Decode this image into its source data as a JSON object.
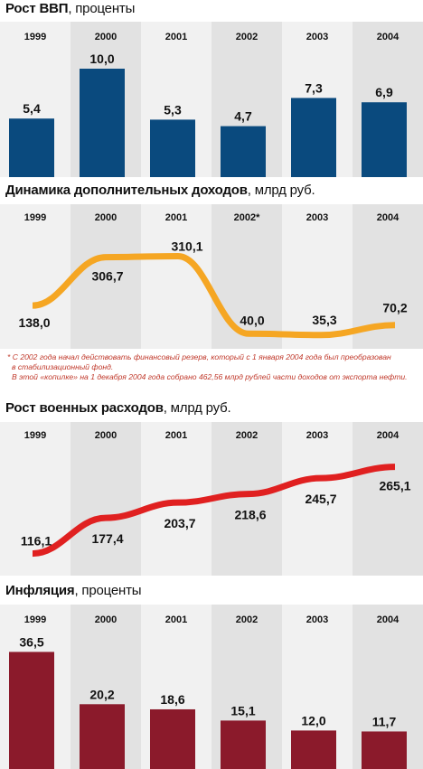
{
  "colors": {
    "stripe_light": "#f1f1f1",
    "stripe_dark": "#e2e2e2",
    "gdp_bar": "#0a4a7e",
    "revenue_line": "#f5a623",
    "military_line": "#e02020",
    "inflation_bar": "#8b1a2b"
  },
  "chart_data": [
    {
      "type": "bar",
      "title": "Рост ВВП",
      "unit": "проценты",
      "categories": [
        "1999",
        "2000",
        "2001",
        "2002",
        "2003",
        "2004"
      ],
      "values": [
        5.4,
        10.0,
        5.3,
        4.7,
        7.3,
        6.9
      ],
      "value_labels": [
        "5,4",
        "10,0",
        "5,3",
        "4,7",
        "7,3",
        "6,9"
      ],
      "ylim": [
        0,
        11
      ],
      "grid": false
    },
    {
      "type": "line",
      "title": "Динамика дополнительных доходов",
      "unit": "млрд руб.",
      "categories": [
        "1999",
        "2000",
        "2001",
        "2002*",
        "2003",
        "2004"
      ],
      "values": [
        138.0,
        306.7,
        310.1,
        40.0,
        35.3,
        70.2
      ],
      "value_labels": [
        "138,0",
        "306,7",
        "310,1",
        "40,0",
        "35,3",
        "70,2"
      ],
      "ylim": [
        0,
        340
      ],
      "grid": false
    },
    {
      "type": "line",
      "title": "Рост военных расходов",
      "unit": "млрд руб.",
      "categories": [
        "1999",
        "2000",
        "2001",
        "2002",
        "2003",
        "2004"
      ],
      "values": [
        116.1,
        177.4,
        203.7,
        218.6,
        245.7,
        265.1
      ],
      "value_labels": [
        "116,1",
        "177,4",
        "203,7",
        "218,6",
        "245,7",
        "265,1"
      ],
      "ylim": [
        100,
        280
      ],
      "grid": false
    },
    {
      "type": "bar",
      "title": "Инфляция",
      "unit": "проценты",
      "categories": [
        "1999",
        "2000",
        "2001",
        "2002",
        "2003",
        "2004"
      ],
      "values": [
        36.5,
        20.2,
        18.6,
        15.1,
        12.0,
        11.7
      ],
      "value_labels": [
        "36,5",
        "20,2",
        "18,6",
        "15,1",
        "12,0",
        "11,7"
      ],
      "ylim": [
        0,
        40
      ],
      "grid": false
    }
  ],
  "footnote": {
    "line1": "* С 2002 года начал действовать финансовый резерв, который с 1 января 2004 года был преобразован",
    "line2": "в стабилизационный фонд.",
    "line3": "В этой «копилке» на 1 декабря 2004 года собрано 462,56 млрд рублей части доходов от экспорта нефти."
  }
}
